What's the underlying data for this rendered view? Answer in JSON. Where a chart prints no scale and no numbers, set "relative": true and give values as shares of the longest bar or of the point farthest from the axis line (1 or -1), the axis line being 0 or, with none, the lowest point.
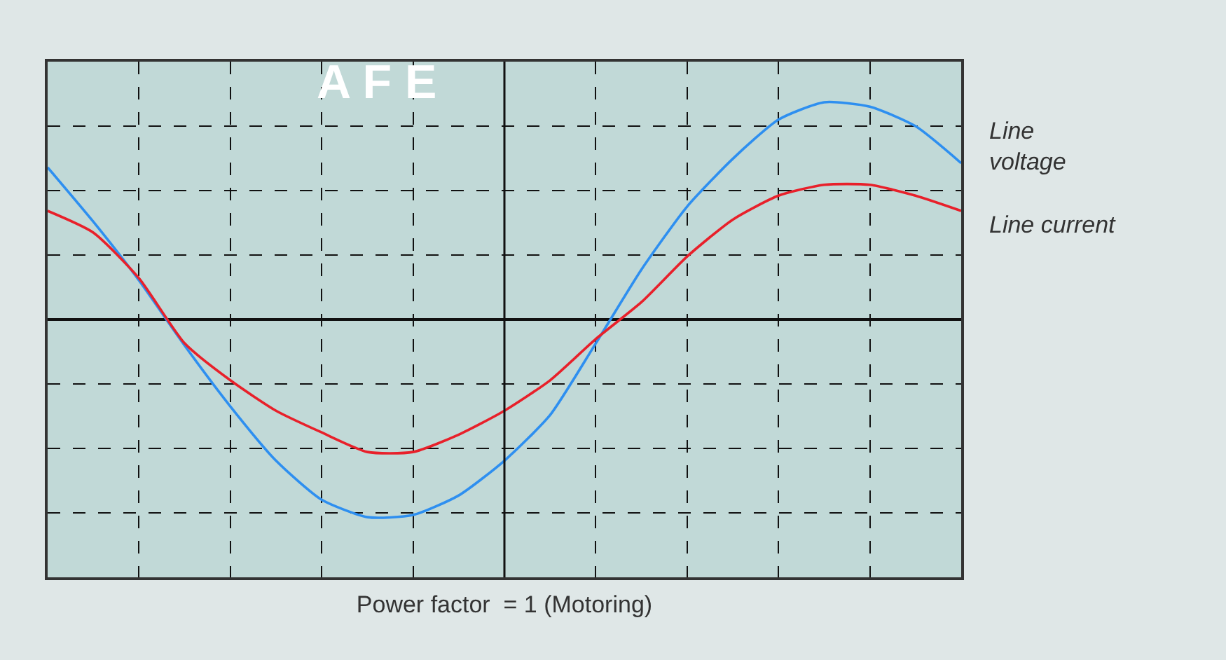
{
  "chart_data": {
    "type": "line",
    "relative": true,
    "grid": true,
    "legend": false,
    "xlabel": "Power factor  = 1 (Motoring)",
    "annotations": [
      "A F E"
    ],
    "categories": [
      null,
      null,
      null,
      null,
      null,
      null,
      null,
      null,
      null,
      null,
      null,
      null,
      null,
      null,
      null,
      null,
      null,
      null,
      null,
      null,
      null
    ],
    "series": [
      {
        "name": "Line\nvoltage",
        "color": "#2e8ff0",
        "values": [
          0.7,
          0.45,
          0.18,
          -0.12,
          -0.4,
          -0.65,
          -0.83,
          -0.91,
          -0.9,
          -0.81,
          -0.65,
          -0.44,
          -0.11,
          0.23,
          0.52,
          0.74,
          0.92,
          1.0,
          0.98,
          0.89,
          0.72
        ]
      },
      {
        "name": "Line current",
        "color": "#e8202a",
        "values": [
          0.5,
          0.4,
          0.19,
          -0.11,
          -0.28,
          -0.42,
          -0.52,
          -0.61,
          -0.61,
          -0.53,
          -0.42,
          -0.28,
          -0.09,
          0.08,
          0.29,
          0.46,
          0.57,
          0.62,
          0.62,
          0.57,
          0.5
        ]
      }
    ]
  }
}
